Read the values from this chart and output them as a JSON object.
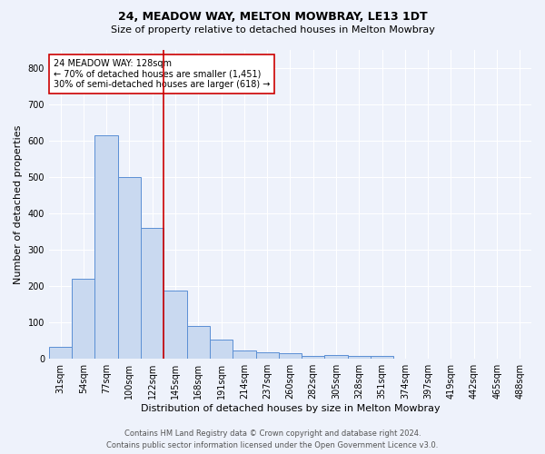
{
  "title_line1": "24, MEADOW WAY, MELTON MOWBRAY, LE13 1DT",
  "title_line2": "Size of property relative to detached houses in Melton Mowbray",
  "xlabel": "Distribution of detached houses by size in Melton Mowbray",
  "ylabel": "Number of detached properties",
  "footer_line1": "Contains HM Land Registry data © Crown copyright and database right 2024.",
  "footer_line2": "Contains public sector information licensed under the Open Government Licence v3.0.",
  "annotation_line1": "24 MEADOW WAY: 128sqm",
  "annotation_line2": "← 70% of detached houses are smaller (1,451)",
  "annotation_line3": "30% of semi-detached houses are larger (618) →",
  "bar_labels": [
    "31sqm",
    "54sqm",
    "77sqm",
    "100sqm",
    "122sqm",
    "145sqm",
    "168sqm",
    "191sqm",
    "214sqm",
    "237sqm",
    "260sqm",
    "282sqm",
    "305sqm",
    "328sqm",
    "351sqm",
    "374sqm",
    "397sqm",
    "419sqm",
    "442sqm",
    "465sqm",
    "488sqm"
  ],
  "bar_values": [
    33,
    220,
    615,
    500,
    360,
    188,
    90,
    52,
    22,
    17,
    15,
    8,
    10,
    9,
    7,
    0,
    0,
    0,
    0,
    0,
    0
  ],
  "bar_color": "#c9d9f0",
  "bar_edge_color": "#5b8fd4",
  "red_line_x": 4.5,
  "ylim": [
    0,
    850
  ],
  "yticks": [
    0,
    100,
    200,
    300,
    400,
    500,
    600,
    700,
    800
  ],
  "background_color": "#eef2fb",
  "grid_color": "#ffffff",
  "annotation_box_color": "#ffffff",
  "annotation_box_edge_color": "#cc0000",
  "red_line_color": "#cc0000",
  "title1_fontsize": 9,
  "title2_fontsize": 8,
  "xlabel_fontsize": 8,
  "ylabel_fontsize": 8,
  "tick_fontsize": 7,
  "annotation_fontsize": 7,
  "footer_fontsize": 6
}
